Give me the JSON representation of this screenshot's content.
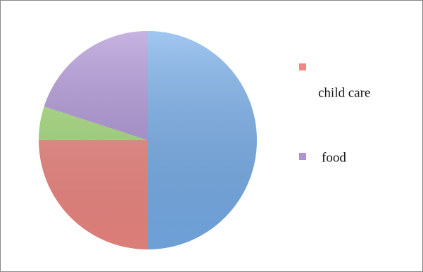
{
  "chart_data": {
    "type": "pie",
    "categories": [
      null,
      "child care",
      null,
      "food"
    ],
    "values": [
      50,
      25,
      5,
      20
    ],
    "colors": [
      "#78aeea",
      "#ef8883",
      "#a6dc7c",
      "#ad93d5"
    ]
  }
}
